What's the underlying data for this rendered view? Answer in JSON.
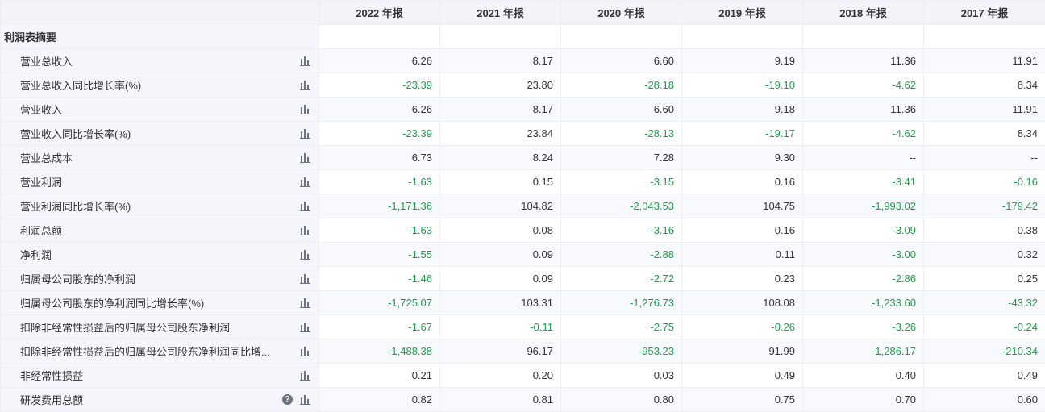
{
  "header": {
    "corner": "",
    "years": [
      "2022 年报",
      "2021 年报",
      "2020 年报",
      "2019 年报",
      "2018 年报",
      "2017 年报"
    ]
  },
  "section_title": "利润表摘要",
  "icons": {
    "chart": "bar-chart-icon",
    "help": "help-icon",
    "help_glyph": "?"
  },
  "colors": {
    "negative": "#1e9b4a",
    "text": "#333333",
    "header_bg": "#f3f4fa"
  },
  "rows": [
    {
      "label": "营业总收入",
      "values": [
        "6.26",
        "8.17",
        "6.60",
        "9.19",
        "11.36",
        "11.91"
      ]
    },
    {
      "label": "营业总收入同比增长率(%)",
      "values": [
        "-23.39",
        "23.80",
        "-28.18",
        "-19.10",
        "-4.62",
        "8.34"
      ]
    },
    {
      "label": "营业收入",
      "values": [
        "6.26",
        "8.17",
        "6.60",
        "9.18",
        "11.36",
        "11.91"
      ]
    },
    {
      "label": "营业收入同比增长率(%)",
      "values": [
        "-23.39",
        "23.84",
        "-28.13",
        "-19.17",
        "-4.62",
        "8.34"
      ]
    },
    {
      "label": "营业总成本",
      "values": [
        "6.73",
        "8.24",
        "7.28",
        "9.30",
        "--",
        "--"
      ]
    },
    {
      "label": "营业利润",
      "values": [
        "-1.63",
        "0.15",
        "-3.15",
        "0.16",
        "-3.41",
        "-0.16"
      ]
    },
    {
      "label": "营业利润同比增长率(%)",
      "values": [
        "-1,171.36",
        "104.82",
        "-2,043.53",
        "104.75",
        "-1,993.02",
        "-179.42"
      ]
    },
    {
      "label": "利润总额",
      "values": [
        "-1.63",
        "0.08",
        "-3.16",
        "0.16",
        "-3.09",
        "0.38"
      ]
    },
    {
      "label": "净利润",
      "values": [
        "-1.55",
        "0.09",
        "-2.88",
        "0.11",
        "-3.00",
        "0.32"
      ]
    },
    {
      "label": "归属母公司股东的净利润",
      "values": [
        "-1.46",
        "0.09",
        "-2.72",
        "0.23",
        "-2.86",
        "0.25"
      ]
    },
    {
      "label": "归属母公司股东的净利润同比增长率(%)",
      "values": [
        "-1,725.07",
        "103.31",
        "-1,276.73",
        "108.08",
        "-1,233.60",
        "-43.32"
      ]
    },
    {
      "label": "扣除非经常性损益后的归属母公司股东净利润",
      "values": [
        "-1.67",
        "-0.11",
        "-2.75",
        "-0.26",
        "-3.26",
        "-0.24"
      ]
    },
    {
      "label": "扣除非经常性损益后的归属母公司股东净利润同比增...",
      "values": [
        "-1,488.38",
        "96.17",
        "-953.23",
        "91.99",
        "-1,286.17",
        "-210.34"
      ]
    },
    {
      "label": "非经常性损益",
      "values": [
        "0.21",
        "0.20",
        "0.03",
        "0.49",
        "0.40",
        "0.49"
      ]
    },
    {
      "label": "研发费用总额",
      "help": true,
      "values": [
        "0.82",
        "0.81",
        "0.80",
        "0.75",
        "0.70",
        "0.60"
      ]
    }
  ]
}
